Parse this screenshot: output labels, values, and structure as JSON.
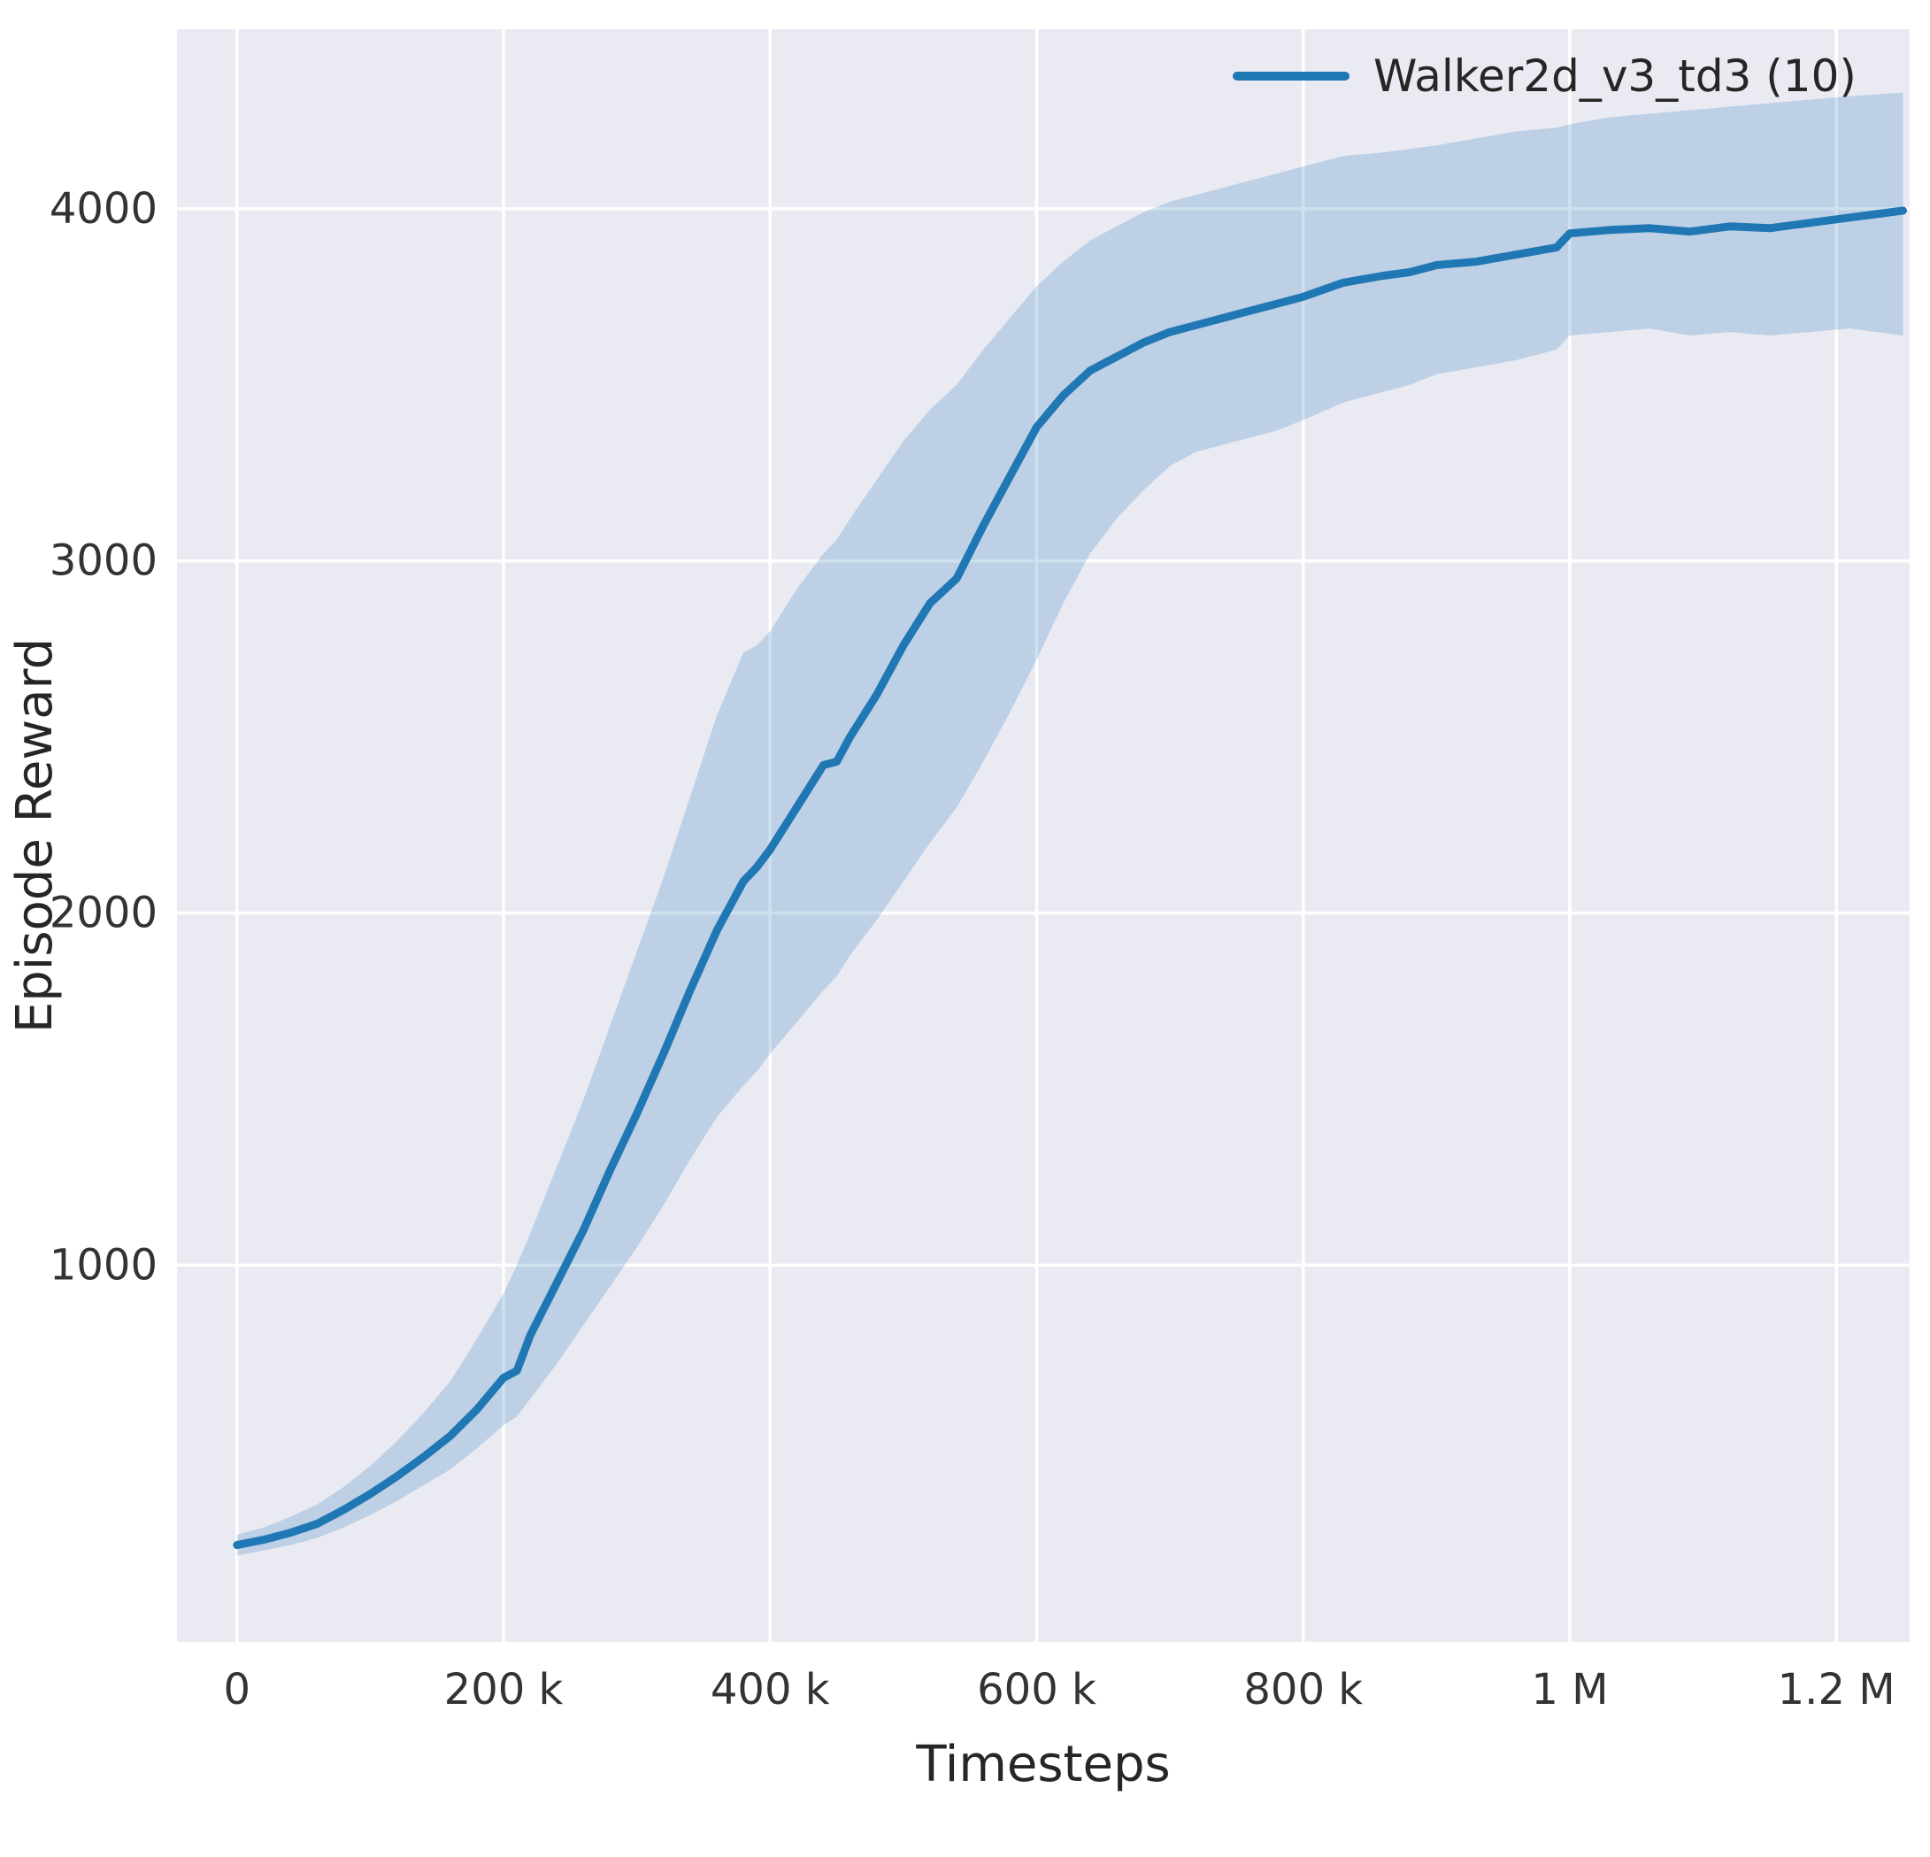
{
  "figure": {
    "background": "#ffffff",
    "plot_background": "#eaeaf2",
    "grid_color": "#ffffff",
    "tick_color": "#333333",
    "label_color": "#262626"
  },
  "chart_data": {
    "type": "line",
    "title": "",
    "xlabel": "Timesteps",
    "ylabel": "Episode Reward",
    "grid": true,
    "legend": {
      "position": "upper right",
      "entries": [
        {
          "label": "Walker2d_v3_td3 (10)",
          "color": "#1f77b4"
        }
      ]
    },
    "xlim": [
      -45000,
      1255000
    ],
    "ylim": [
      -70,
      4510
    ],
    "x_ticks": {
      "values": [
        0,
        200000,
        400000,
        600000,
        800000,
        1000000,
        1200000
      ],
      "labels": [
        "0",
        "200 k",
        "400 k",
        "600 k",
        "800 k",
        "1 M",
        "1.2 M"
      ]
    },
    "y_ticks": {
      "values": [
        1000,
        2000,
        3000,
        4000
      ],
      "labels": [
        "1000",
        "2000",
        "3000",
        "4000"
      ]
    },
    "series": [
      {
        "name": "Walker2d_v3_td3 (10)",
        "color": "#1f77b4",
        "band_fill": "rgba(31,119,180,0.22)",
        "x": [
          0,
          20000,
          40000,
          60000,
          80000,
          100000,
          120000,
          140000,
          160000,
          180000,
          200000,
          210000,
          220000,
          240000,
          260000,
          280000,
          300000,
          320000,
          340000,
          360000,
          380000,
          390000,
          400000,
          420000,
          440000,
          450000,
          460000,
          480000,
          500000,
          520000,
          540000,
          560000,
          580000,
          600000,
          620000,
          640000,
          660000,
          680000,
          700000,
          720000,
          750000,
          780000,
          800000,
          830000,
          860000,
          880000,
          900000,
          930000,
          960000,
          990000,
          1000000,
          1030000,
          1060000,
          1090000,
          1120000,
          1150000,
          1180000,
          1210000,
          1230000,
          1250000
        ],
        "mean": [
          205,
          220,
          240,
          265,
          305,
          350,
          400,
          455,
          515,
          590,
          680,
          700,
          800,
          950,
          1100,
          1270,
          1430,
          1600,
          1780,
          1950,
          2090,
          2130,
          2180,
          2300,
          2420,
          2430,
          2500,
          2620,
          2760,
          2880,
          2950,
          3100,
          3240,
          3380,
          3470,
          3540,
          3580,
          3620,
          3650,
          3670,
          3700,
          3730,
          3750,
          3790,
          3810,
          3820,
          3840,
          3850,
          3870,
          3890,
          3930,
          3940,
          3945,
          3935,
          3950,
          3945,
          3960,
          3975,
          3985,
          3995
        ],
        "band_low": [
          175,
          190,
          205,
          225,
          255,
          290,
          330,
          375,
          420,
          480,
          545,
          570,
          620,
          720,
          830,
          940,
          1050,
          1170,
          1300,
          1420,
          1510,
          1550,
          1600,
          1690,
          1780,
          1820,
          1880,
          1980,
          2090,
          2200,
          2300,
          2430,
          2570,
          2720,
          2880,
          3020,
          3120,
          3200,
          3270,
          3310,
          3340,
          3370,
          3400,
          3450,
          3480,
          3500,
          3530,
          3550,
          3570,
          3600,
          3640,
          3650,
          3660,
          3640,
          3650,
          3640,
          3650,
          3660,
          3650,
          3640
        ],
        "band_high": [
          235,
          255,
          285,
          320,
          370,
          430,
          500,
          580,
          670,
          790,
          920,
          1000,
          1090,
          1280,
          1470,
          1680,
          1890,
          2100,
          2330,
          2560,
          2740,
          2760,
          2800,
          2920,
          3020,
          3060,
          3120,
          3230,
          3340,
          3430,
          3500,
          3600,
          3690,
          3780,
          3850,
          3910,
          3950,
          3990,
          4020,
          4040,
          4070,
          4100,
          4120,
          4150,
          4160,
          4170,
          4180,
          4200,
          4220,
          4230,
          4240,
          4260,
          4270,
          4280,
          4290,
          4300,
          4310,
          4320,
          4325,
          4330
        ]
      }
    ]
  }
}
